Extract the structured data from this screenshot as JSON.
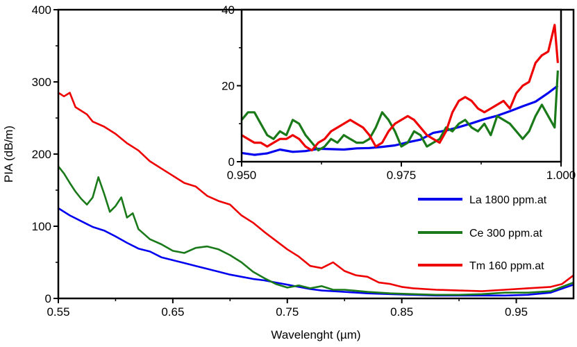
{
  "chart_data": [
    {
      "type": "line",
      "xlabel": "Wavelenght (µm)",
      "ylabel": "PIA (dB/m)",
      "xlim": [
        0.55,
        1.0
      ],
      "ylim": [
        0,
        400
      ],
      "x_ticks": [
        0.55,
        0.65,
        0.75,
        0.85,
        0.95
      ],
      "x_tick_labels": [
        "0.55",
        "0.65",
        "0.75",
        "0.85",
        "0.95"
      ],
      "y_ticks": [
        0,
        100,
        200,
        300,
        400
      ],
      "y_tick_labels": [
        "0",
        "100",
        "200",
        "300",
        "400"
      ],
      "legend_position": "right",
      "grid": false,
      "series": [
        {
          "name": "La 1800 ppm.at",
          "color": "#0000ee",
          "x": [
            0.55,
            0.56,
            0.57,
            0.58,
            0.59,
            0.6,
            0.61,
            0.62,
            0.63,
            0.64,
            0.65,
            0.66,
            0.67,
            0.68,
            0.69,
            0.7,
            0.71,
            0.72,
            0.73,
            0.74,
            0.75,
            0.76,
            0.77,
            0.78,
            0.79,
            0.8,
            0.82,
            0.84,
            0.86,
            0.88,
            0.9,
            0.92,
            0.94,
            0.96,
            0.98,
            1.0
          ],
          "y": [
            125,
            115,
            107,
            99,
            94,
            86,
            77,
            69,
            65,
            57,
            53,
            49,
            45,
            41,
            37,
            33,
            30,
            27,
            25,
            22,
            19,
            16,
            13,
            11,
            10,
            9,
            7,
            6,
            5,
            4,
            4,
            4,
            4,
            5,
            8,
            19
          ]
        },
        {
          "name": "Ce 300 ppm.at",
          "color": "#1a7a1a",
          "x": [
            0.55,
            0.555,
            0.56,
            0.565,
            0.57,
            0.575,
            0.58,
            0.585,
            0.59,
            0.595,
            0.6,
            0.605,
            0.61,
            0.615,
            0.62,
            0.63,
            0.64,
            0.65,
            0.66,
            0.67,
            0.68,
            0.69,
            0.7,
            0.71,
            0.72,
            0.73,
            0.74,
            0.75,
            0.76,
            0.77,
            0.78,
            0.79,
            0.8,
            0.82,
            0.84,
            0.86,
            0.88,
            0.9,
            0.92,
            0.94,
            0.96,
            0.98,
            1.0
          ],
          "y": [
            183,
            173,
            160,
            148,
            138,
            130,
            140,
            168,
            145,
            120,
            128,
            140,
            112,
            118,
            96,
            82,
            75,
            66,
            63,
            70,
            72,
            68,
            60,
            50,
            37,
            28,
            20,
            15,
            18,
            14,
            17,
            12,
            12,
            9,
            7,
            6,
            5,
            5,
            6,
            8,
            8,
            10,
            22
          ]
        },
        {
          "name": "Tm 160 ppm.at",
          "color": "#ee0000",
          "x": [
            0.55,
            0.555,
            0.56,
            0.565,
            0.57,
            0.575,
            0.58,
            0.59,
            0.6,
            0.61,
            0.62,
            0.63,
            0.64,
            0.65,
            0.66,
            0.67,
            0.68,
            0.69,
            0.7,
            0.71,
            0.72,
            0.73,
            0.74,
            0.75,
            0.76,
            0.77,
            0.78,
            0.79,
            0.8,
            0.81,
            0.82,
            0.83,
            0.84,
            0.85,
            0.86,
            0.88,
            0.9,
            0.92,
            0.94,
            0.96,
            0.98,
            0.99,
            1.0
          ],
          "y": [
            285,
            280,
            285,
            265,
            260,
            255,
            245,
            238,
            228,
            215,
            205,
            190,
            180,
            170,
            160,
            155,
            142,
            135,
            130,
            115,
            105,
            92,
            80,
            68,
            58,
            45,
            42,
            50,
            38,
            32,
            30,
            22,
            20,
            16,
            14,
            12,
            11,
            10,
            12,
            14,
            16,
            20,
            32
          ]
        }
      ]
    },
    {
      "type": "line",
      "xlim": [
        0.95,
        1.0
      ],
      "ylim": [
        0,
        40
      ],
      "x_ticks": [
        0.95,
        0.975,
        1.0
      ],
      "x_tick_labels": [
        "0.950",
        "0.975",
        "1.000"
      ],
      "y_ticks": [
        0,
        20,
        40
      ],
      "y_tick_labels": [
        "0",
        "20",
        "40"
      ],
      "grid": false,
      "series": [
        {
          "color": "#0000ee",
          "x": [
            0.95,
            0.952,
            0.954,
            0.956,
            0.958,
            0.96,
            0.962,
            0.964,
            0.966,
            0.968,
            0.97,
            0.972,
            0.974,
            0.976,
            0.978,
            0.98,
            0.982,
            0.984,
            0.986,
            0.988,
            0.99,
            0.992,
            0.994,
            0.996,
            0.998,
            0.9995
          ],
          "y": [
            2.3,
            1.8,
            2.2,
            3.2,
            2.6,
            2.8,
            3.4,
            3.3,
            3.2,
            3.5,
            3.6,
            3.9,
            4.3,
            5.1,
            5.8,
            7.6,
            8.2,
            9.1,
            10.1,
            11.2,
            12.1,
            13.3,
            14.6,
            15.8,
            18.1,
            20.0
          ]
        },
        {
          "color": "#1a7a1a",
          "x": [
            0.95,
            0.951,
            0.952,
            0.953,
            0.954,
            0.955,
            0.956,
            0.957,
            0.958,
            0.959,
            0.96,
            0.961,
            0.962,
            0.963,
            0.964,
            0.965,
            0.966,
            0.967,
            0.968,
            0.969,
            0.97,
            0.971,
            0.972,
            0.973,
            0.974,
            0.975,
            0.976,
            0.977,
            0.978,
            0.979,
            0.98,
            0.981,
            0.982,
            0.983,
            0.984,
            0.985,
            0.986,
            0.987,
            0.988,
            0.989,
            0.99,
            0.991,
            0.992,
            0.993,
            0.994,
            0.995,
            0.996,
            0.997,
            0.998,
            0.999,
            0.9995
          ],
          "y": [
            11,
            13,
            13,
            10,
            7,
            6,
            8,
            7,
            11,
            10,
            7,
            5,
            3,
            4,
            6,
            5,
            7,
            6,
            5,
            5,
            6,
            9,
            13,
            11,
            8,
            4,
            5,
            8,
            7,
            4,
            5,
            6,
            9,
            8,
            10,
            11,
            9,
            8,
            10,
            7,
            12,
            11,
            10,
            8,
            6,
            8,
            12,
            15,
            12,
            9,
            24
          ]
        },
        {
          "color": "#ee0000",
          "x": [
            0.95,
            0.951,
            0.952,
            0.953,
            0.954,
            0.955,
            0.956,
            0.957,
            0.958,
            0.959,
            0.96,
            0.961,
            0.962,
            0.963,
            0.964,
            0.965,
            0.966,
            0.967,
            0.968,
            0.969,
            0.97,
            0.971,
            0.972,
            0.973,
            0.974,
            0.975,
            0.976,
            0.977,
            0.978,
            0.979,
            0.98,
            0.981,
            0.982,
            0.983,
            0.984,
            0.985,
            0.986,
            0.987,
            0.988,
            0.989,
            0.99,
            0.991,
            0.992,
            0.993,
            0.994,
            0.995,
            0.996,
            0.997,
            0.998,
            0.999,
            0.9995
          ],
          "y": [
            7,
            6,
            5,
            5,
            4,
            5,
            6,
            6,
            7,
            6,
            4,
            3,
            5,
            6,
            8,
            9,
            10,
            11,
            10,
            9,
            7,
            4,
            5,
            8,
            10,
            11,
            12,
            11,
            9,
            7,
            6,
            5,
            8,
            13,
            16,
            17,
            16,
            14,
            13,
            14,
            15,
            16,
            14,
            18,
            20,
            21,
            26,
            28,
            29,
            36,
            26
          ]
        }
      ]
    }
  ]
}
